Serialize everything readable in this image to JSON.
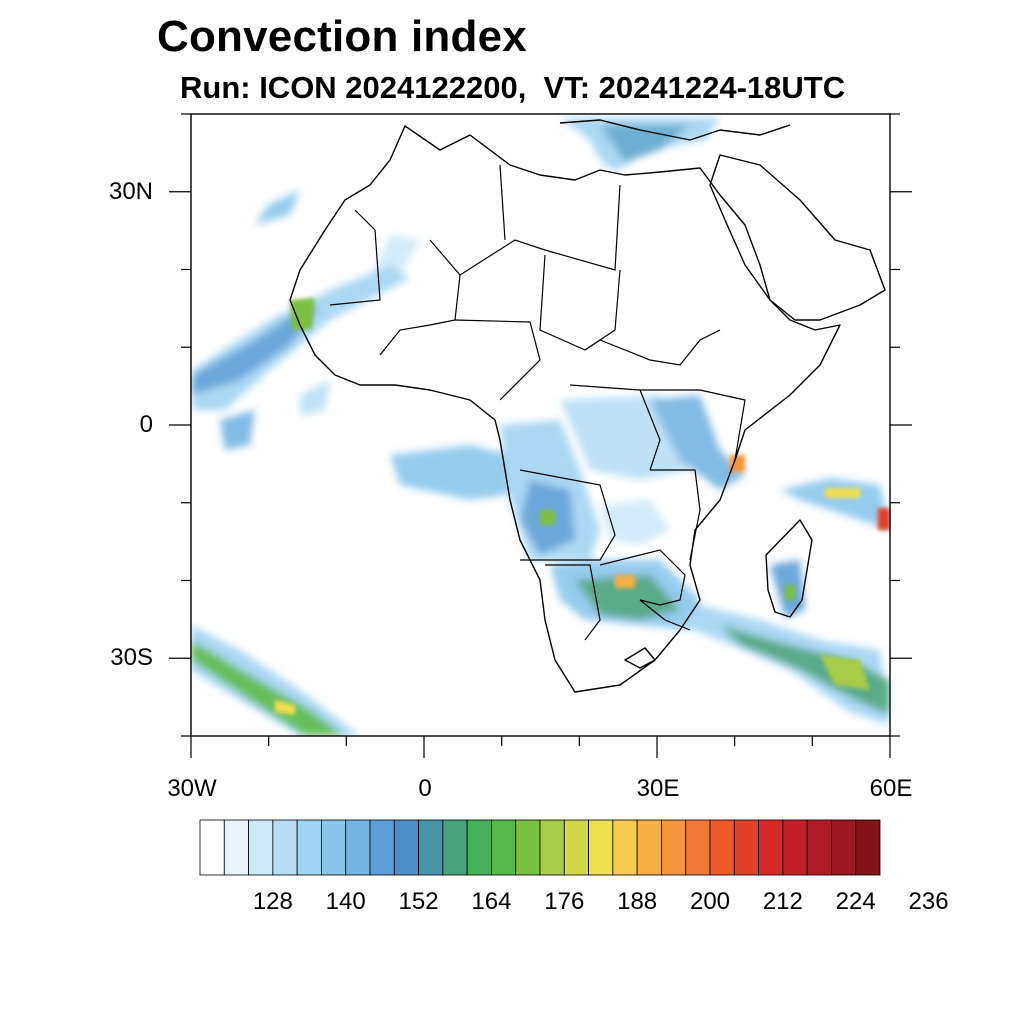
{
  "title": "Convection index",
  "subtitle": "Run: ICON 2024122200,  VT: 20241224-18UTC",
  "map": {
    "lat_ticks": [
      {
        "value": 30,
        "label": "30N"
      },
      {
        "value": 0,
        "label": "0"
      },
      {
        "value": -30,
        "label": "30S"
      }
    ],
    "lon_ticks": [
      {
        "value": -30,
        "label": "30W"
      },
      {
        "value": 0,
        "label": "0"
      },
      {
        "value": 30,
        "label": "30E"
      },
      {
        "value": 60,
        "label": "60E"
      }
    ],
    "lon_range": [
      -30,
      60
    ],
    "lat_range": [
      -40,
      40
    ]
  },
  "colorbar": {
    "labels": [
      "128",
      "140",
      "152",
      "164",
      "176",
      "188",
      "200",
      "212",
      "224",
      "236"
    ],
    "colors": [
      "#ffffff",
      "#e8f4fc",
      "#cfe9f8",
      "#b8def5",
      "#a1d4f3",
      "#8ac6ec",
      "#74b4e2",
      "#5d9ed6",
      "#4f8ec8",
      "#4a94a8",
      "#48a27e",
      "#46b05c",
      "#56b848",
      "#7cc042",
      "#a8cc46",
      "#d0d84a",
      "#f0e050",
      "#f8cc4c",
      "#f6b044",
      "#f4943c",
      "#f07834",
      "#ea5a2c",
      "#e24028",
      "#d62a28",
      "#c41f26",
      "#b01a24",
      "#9c1820",
      "#841418"
    ]
  }
}
